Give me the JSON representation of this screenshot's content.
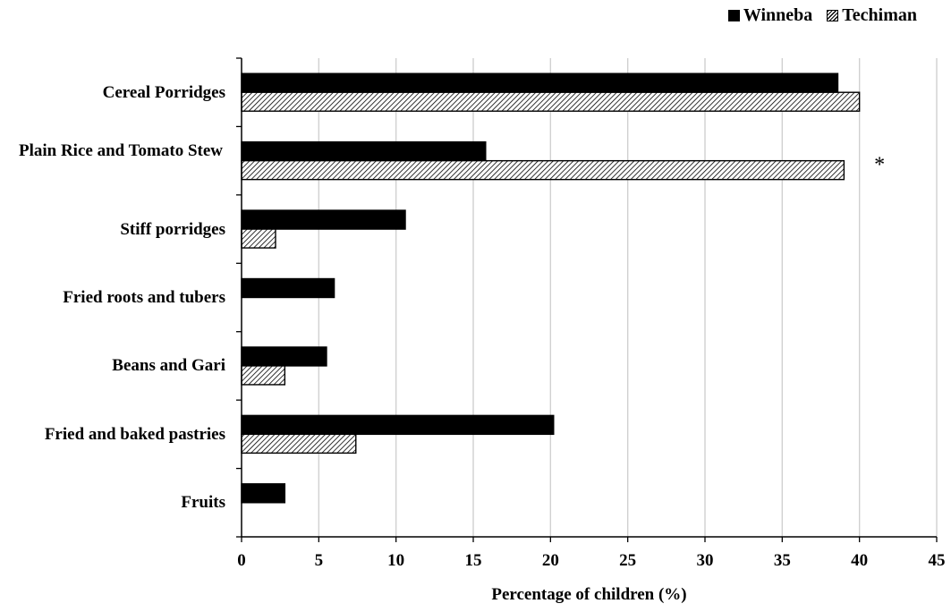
{
  "chart_data": {
    "type": "bar",
    "orientation": "horizontal",
    "categories": [
      "Cereal Porridges",
      "Plain Rice and Tomato Stew",
      "Stiff porridges",
      "Fried roots and tubers",
      "Beans and Gari",
      "Fried and baked pastries",
      "Fruits"
    ],
    "series": [
      {
        "name": "Winneba",
        "values": [
          38.6,
          15.8,
          10.6,
          6.0,
          5.5,
          20.2,
          2.8
        ],
        "fill": "solid"
      },
      {
        "name": "Techiman",
        "values": [
          40.0,
          39.0,
          2.2,
          0,
          2.8,
          7.4,
          0
        ],
        "fill": "hatched"
      }
    ],
    "xlabel": "Percentage of children (%)",
    "ylabel": "",
    "xlim": [
      0,
      45
    ],
    "xticks": [
      0,
      5,
      10,
      15,
      20,
      25,
      30,
      35,
      40,
      45
    ],
    "grid": "vertical",
    "legend": "top-right",
    "annotations": [
      {
        "text": "*",
        "category": "Plain Rice and Tomato Stew"
      }
    ],
    "colors": {
      "bar": "#000000",
      "grid": "#d0d0d0",
      "axis": "#000000"
    }
  }
}
